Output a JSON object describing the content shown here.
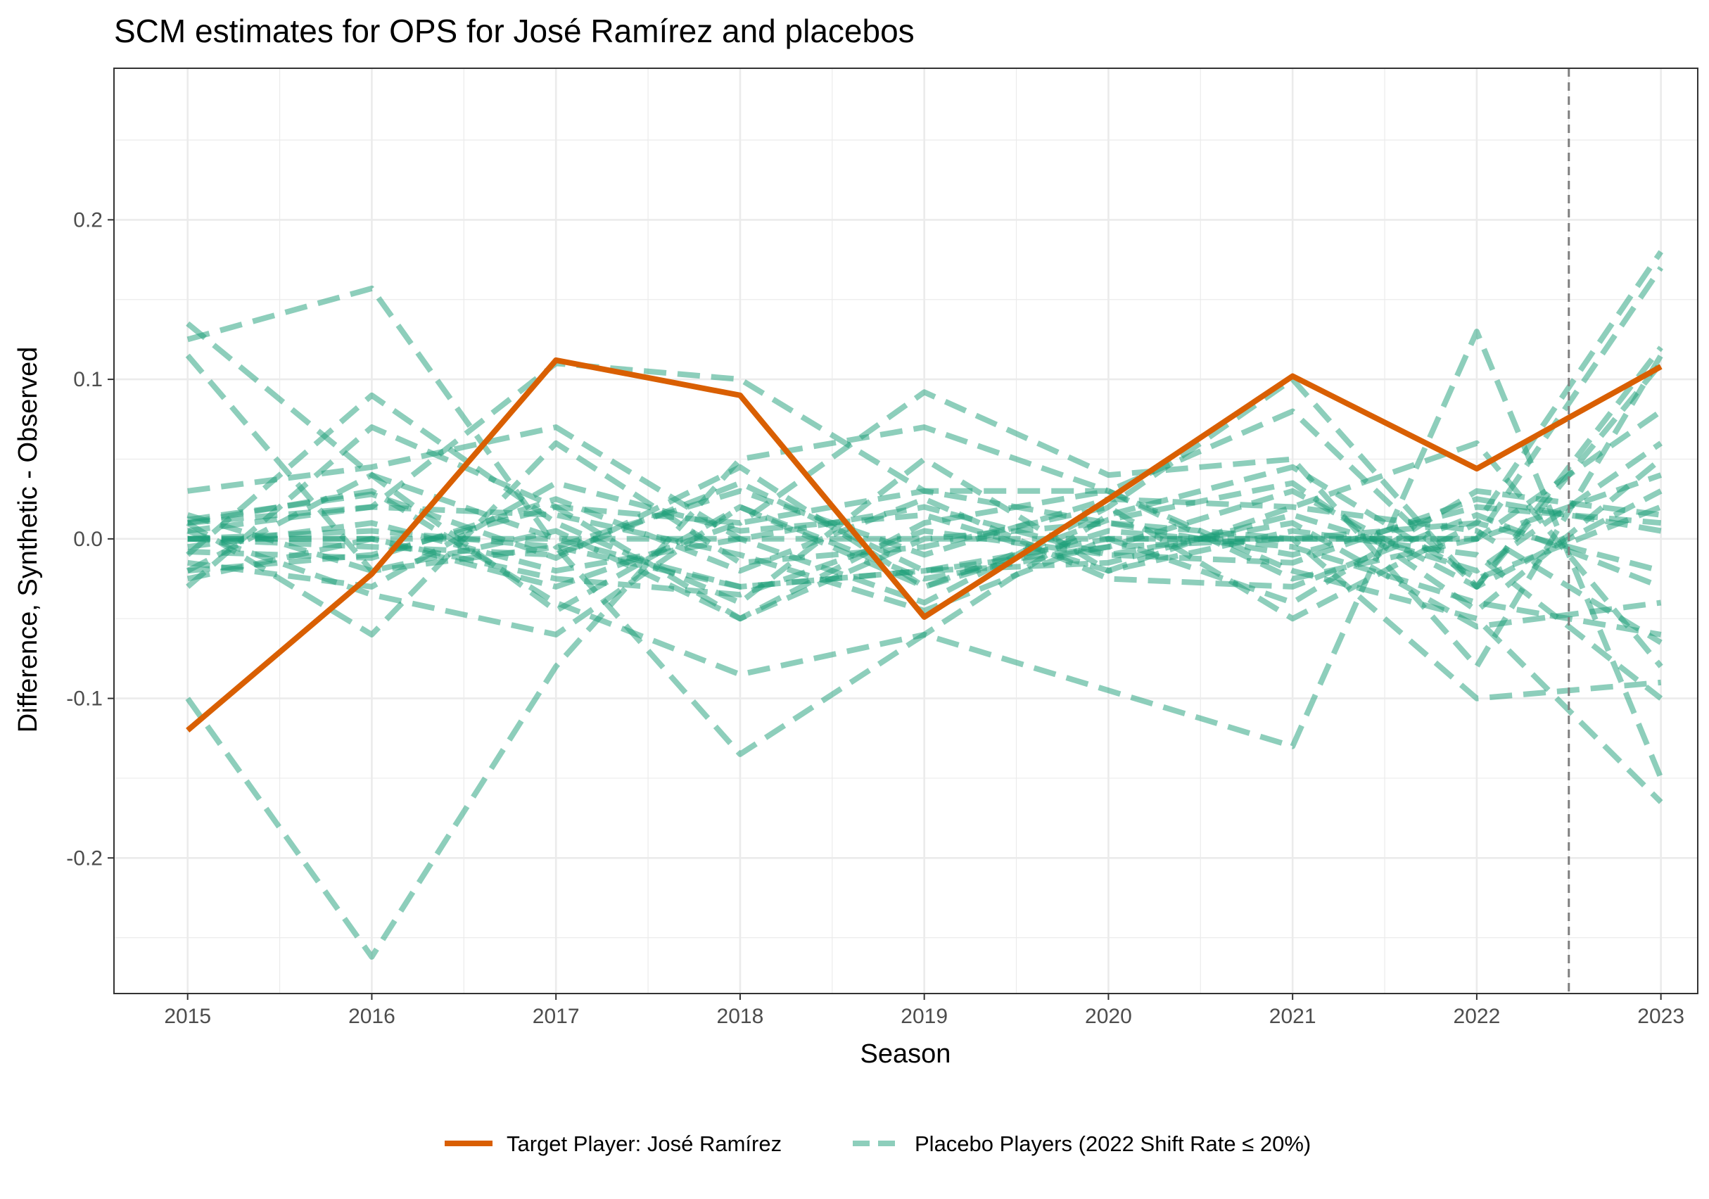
{
  "chart_data": {
    "type": "line",
    "title": "SCM estimates for OPS for José Ramírez and placebos",
    "xlabel": "Season",
    "ylabel": "Difference, Synthetic - Observed",
    "x": [
      2015,
      2016,
      2017,
      2018,
      2019,
      2020,
      2021,
      2022,
      2023
    ],
    "x_ticks": [
      "2015",
      "2016",
      "2017",
      "2018",
      "2019",
      "2020",
      "2021",
      "2022",
      "2023"
    ],
    "y_ticks": [
      "-0.2",
      "-0.1",
      "0.0",
      "0.1",
      "0.2"
    ],
    "y_tick_values": [
      -0.2,
      -0.1,
      0.0,
      0.1,
      0.2
    ],
    "xlim": [
      2014.6,
      2023.2
    ],
    "ylim": [
      -0.285,
      0.295
    ],
    "grid": true,
    "treatment_line_x": 2022.5,
    "legend_position": "bottom",
    "target_series": {
      "name": "Target Player: José Ramírez",
      "values": [
        -0.12,
        -0.022,
        0.112,
        0.09,
        -0.049,
        0.025,
        0.102,
        0.044,
        0.108
      ]
    },
    "placebo_series": {
      "name": "Placebo Players (2022 Shift Rate ≤ 20%)",
      "series": [
        {
          "values": [
            0.125,
            0.157,
            -0.005,
            -0.03,
            -0.02,
            -0.005,
            0.0,
            0.01,
            0.18
          ]
        },
        {
          "values": [
            0.135,
            0.04,
            0.0,
            -0.03,
            -0.02,
            0.0,
            0.0,
            0.0,
            0.17
          ]
        },
        {
          "values": [
            -0.1,
            -0.262,
            -0.08,
            0.05,
            0.07,
            0.03,
            -0.02,
            -0.05,
            -0.165
          ]
        },
        {
          "values": [
            0.115,
            -0.02,
            -0.005,
            -0.135,
            -0.06,
            -0.095,
            -0.13,
            0.13,
            -0.15
          ]
        },
        {
          "values": [
            0.01,
            0.02,
            0.11,
            0.1,
            0.03,
            0.03,
            0.08,
            -0.03,
            0.12
          ]
        },
        {
          "values": [
            -0.03,
            0.07,
            0.02,
            0.01,
            0.092,
            0.04,
            0.05,
            -0.08,
            0.115
          ]
        },
        {
          "values": [
            0.03,
            0.045,
            0.07,
            0.0,
            -0.04,
            0.02,
            0.1,
            -0.03,
            0.11
          ]
        },
        {
          "values": [
            0.0,
            0.0,
            0.0,
            0.0,
            0.0,
            0.0,
            0.0,
            0.0,
            0.08
          ]
        },
        {
          "values": [
            0.0,
            -0.005,
            -0.01,
            0.035,
            -0.02,
            -0.015,
            0.015,
            -0.02,
            0.06
          ]
        },
        {
          "values": [
            0.01,
            0.03,
            -0.04,
            -0.085,
            -0.06,
            0.015,
            0.045,
            -0.025,
            0.02
          ]
        },
        {
          "values": [
            -0.02,
            -0.01,
            0.02,
            -0.05,
            0.0,
            0.01,
            -0.01,
            0.02,
            0.01
          ]
        },
        {
          "values": [
            0.005,
            -0.035,
            -0.06,
            0.02,
            -0.03,
            0.005,
            -0.005,
            -0.04,
            -0.06
          ]
        },
        {
          "values": [
            -0.01,
            0.09,
            0.01,
            -0.04,
            0.05,
            -0.02,
            0.02,
            0.06,
            -0.08
          ]
        },
        {
          "values": [
            0.01,
            -0.06,
            0.06,
            -0.015,
            -0.005,
            0.02,
            -0.05,
            0.01,
            -0.02
          ]
        },
        {
          "values": [
            0.0,
            0.0,
            -0.03,
            0.01,
            0.03,
            0.01,
            0.0,
            -0.1,
            -0.09
          ]
        },
        {
          "values": [
            -0.02,
            0.04,
            -0.045,
            0.02,
            -0.025,
            -0.005,
            0.03,
            -0.03,
            0.03
          ]
        },
        {
          "values": [
            0.015,
            -0.02,
            0.005,
            -0.05,
            0.01,
            0.03,
            -0.025,
            0.0,
            0.04
          ]
        },
        {
          "values": [
            -0.005,
            0.01,
            -0.02,
            0.0,
            0.02,
            -0.01,
            0.01,
            -0.055,
            -0.04
          ]
        },
        {
          "values": [
            0.005,
            0.02,
            0.015,
            -0.01,
            -0.045,
            0.0,
            -0.04,
            0.03,
            0.015
          ]
        },
        {
          "values": [
            -0.015,
            -0.03,
            0.035,
            0.005,
            0.015,
            -0.02,
            0.005,
            -0.01,
            -0.1
          ]
        },
        {
          "values": [
            0.0,
            0.005,
            -0.005,
            0.03,
            -0.01,
            0.025,
            0.02,
            0.005,
            -0.065
          ]
        },
        {
          "values": [
            -0.025,
            0.0,
            -0.025,
            -0.035,
            0.005,
            -0.01,
            -0.015,
            0.025,
            0.005
          ]
        },
        {
          "values": [
            0.012,
            0.028,
            -0.012,
            0.045,
            -0.03,
            0.012,
            0.035,
            -0.045,
            0.05
          ]
        },
        {
          "values": [
            -0.008,
            -0.012,
            0.025,
            -0.02,
            0.025,
            -0.025,
            -0.03,
            0.015,
            -0.03
          ]
        }
      ]
    }
  }
}
